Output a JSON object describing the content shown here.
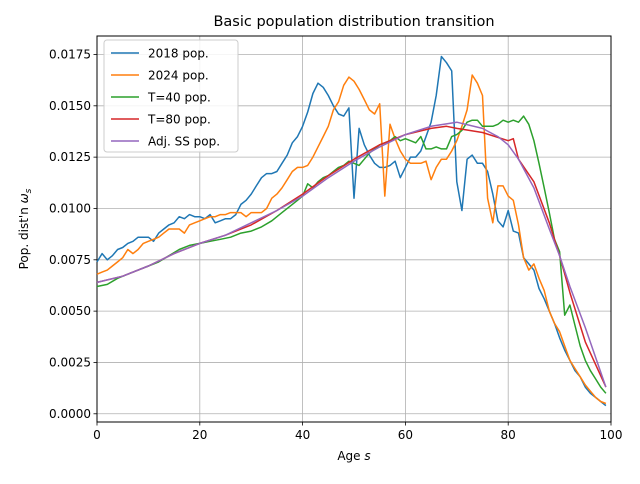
{
  "chart_data": {
    "type": "line",
    "title": "Basic population distribution transition",
    "xlabel_text": "Age ",
    "xlabel_italic": "s",
    "ylabel_text": "Pop. dist'n ",
    "ylabel_symbol": "ω",
    "ylabel_sub": "s",
    "xlim": [
      0,
      100
    ],
    "ylim": [
      -0.0004,
      0.0184
    ],
    "grid": true,
    "legend_position": "top-left",
    "x_ticks": [
      0,
      20,
      40,
      60,
      80,
      100
    ],
    "x_tick_labels": [
      "0",
      "20",
      "40",
      "60",
      "80",
      "100"
    ],
    "y_ticks": [
      0.0,
      0.0025,
      0.005,
      0.0075,
      0.01,
      0.0125,
      0.015,
      0.0175
    ],
    "y_tick_labels": [
      "0.0000",
      "0.0025",
      "0.0050",
      "0.0075",
      "0.0100",
      "0.0125",
      "0.0150",
      "0.0175"
    ],
    "series": [
      {
        "name": "2018 pop.",
        "color": "#1f77b4",
        "x": [
          0,
          1,
          2,
          3,
          4,
          5,
          6,
          7,
          8,
          9,
          10,
          11,
          12,
          13,
          14,
          15,
          16,
          17,
          18,
          19,
          20,
          21,
          22,
          23,
          24,
          25,
          26,
          27,
          28,
          29,
          30,
          31,
          32,
          33,
          34,
          35,
          36,
          37,
          38,
          39,
          40,
          41,
          42,
          43,
          44,
          45,
          46,
          47,
          48,
          49,
          50,
          51,
          52,
          53,
          54,
          55,
          56,
          57,
          58,
          59,
          60,
          61,
          62,
          63,
          64,
          65,
          66,
          67,
          68,
          69,
          70,
          71,
          72,
          73,
          74,
          75,
          76,
          77,
          78,
          79,
          80,
          81,
          82,
          83,
          84,
          85,
          86,
          87,
          88,
          89,
          90,
          91,
          92,
          93,
          94,
          95,
          96,
          97,
          98,
          99
        ],
        "y": [
          0.0074,
          0.0078,
          0.0075,
          0.0077,
          0.008,
          0.0081,
          0.0083,
          0.0084,
          0.0086,
          0.0086,
          0.0086,
          0.0084,
          0.0088,
          0.009,
          0.0092,
          0.0093,
          0.0096,
          0.0095,
          0.0097,
          0.0096,
          0.0096,
          0.0095,
          0.0097,
          0.0093,
          0.0094,
          0.0095,
          0.0095,
          0.0097,
          0.0102,
          0.0104,
          0.0107,
          0.0111,
          0.0115,
          0.0117,
          0.0117,
          0.0118,
          0.0122,
          0.0126,
          0.0132,
          0.0135,
          0.014,
          0.0147,
          0.0156,
          0.0161,
          0.0159,
          0.0155,
          0.015,
          0.0146,
          0.0145,
          0.0149,
          0.0105,
          0.0139,
          0.0131,
          0.0126,
          0.0122,
          0.012,
          0.012,
          0.0121,
          0.0123,
          0.0115,
          0.012,
          0.0125,
          0.0125,
          0.0128,
          0.0135,
          0.0142,
          0.0155,
          0.0174,
          0.0171,
          0.0167,
          0.0113,
          0.0099,
          0.0124,
          0.0126,
          0.0122,
          0.0122,
          0.0118,
          0.0107,
          0.0094,
          0.0091,
          0.0099,
          0.0089,
          0.0088,
          0.0076,
          0.0073,
          0.007,
          0.0061,
          0.0056,
          0.005,
          0.0044,
          0.0037,
          0.0031,
          0.0026,
          0.0021,
          0.0018,
          0.0013,
          0.001,
          0.0008,
          0.0006,
          0.0004
        ]
      },
      {
        "name": "2024 pop.",
        "color": "#ff7f0e",
        "x": [
          0,
          1,
          2,
          3,
          4,
          5,
          6,
          7,
          8,
          9,
          10,
          11,
          12,
          13,
          14,
          15,
          16,
          17,
          18,
          19,
          20,
          21,
          22,
          23,
          24,
          25,
          26,
          27,
          28,
          29,
          30,
          31,
          32,
          33,
          34,
          35,
          36,
          37,
          38,
          39,
          40,
          41,
          42,
          43,
          44,
          45,
          46,
          47,
          48,
          49,
          50,
          51,
          52,
          53,
          54,
          55,
          56,
          57,
          58,
          59,
          60,
          61,
          62,
          63,
          64,
          65,
          66,
          67,
          68,
          69,
          70,
          71,
          72,
          73,
          74,
          75,
          76,
          77,
          78,
          79,
          80,
          81,
          82,
          83,
          84,
          85,
          86,
          87,
          88,
          89,
          90,
          91,
          92,
          93,
          94,
          95,
          96,
          97,
          98,
          99
        ],
        "y": [
          0.0068,
          0.0069,
          0.007,
          0.0072,
          0.0074,
          0.0076,
          0.008,
          0.0078,
          0.008,
          0.0083,
          0.0084,
          0.0085,
          0.0086,
          0.0088,
          0.009,
          0.009,
          0.009,
          0.0088,
          0.0092,
          0.0093,
          0.0094,
          0.0095,
          0.0096,
          0.0096,
          0.0097,
          0.0097,
          0.0098,
          0.0098,
          0.0098,
          0.0096,
          0.0098,
          0.0098,
          0.0098,
          0.01,
          0.0105,
          0.0107,
          0.011,
          0.0114,
          0.0118,
          0.012,
          0.012,
          0.0121,
          0.0125,
          0.013,
          0.0135,
          0.014,
          0.0148,
          0.0152,
          0.016,
          0.0164,
          0.0162,
          0.0158,
          0.0153,
          0.0148,
          0.0146,
          0.0151,
          0.0106,
          0.0141,
          0.0134,
          0.0128,
          0.0124,
          0.0122,
          0.0122,
          0.0122,
          0.0123,
          0.0114,
          0.012,
          0.0124,
          0.0124,
          0.0128,
          0.0133,
          0.014,
          0.0148,
          0.0165,
          0.0161,
          0.0155,
          0.0105,
          0.0093,
          0.0111,
          0.0111,
          0.0106,
          0.0104,
          0.0092,
          0.0076,
          0.007,
          0.0073,
          0.0066,
          0.006,
          0.005,
          0.0044,
          0.004,
          0.0033,
          0.0026,
          0.0022,
          0.0018,
          0.0014,
          0.0011,
          0.0008,
          0.0006,
          0.0005
        ]
      },
      {
        "name": "T=40 pop.",
        "color": "#2ca02c",
        "x": [
          0,
          2,
          4,
          6,
          8,
          10,
          12,
          14,
          16,
          18,
          20,
          22,
          24,
          26,
          28,
          30,
          32,
          34,
          36,
          38,
          39,
          40,
          41,
          42,
          43,
          44,
          45,
          46,
          47,
          48,
          49,
          50,
          51,
          52,
          53,
          54,
          55,
          56,
          57,
          58,
          59,
          60,
          61,
          62,
          63,
          64,
          65,
          66,
          67,
          68,
          69,
          70,
          71,
          72,
          73,
          74,
          75,
          76,
          77,
          78,
          79,
          80,
          81,
          82,
          83,
          84,
          85,
          86,
          87,
          88,
          89,
          90,
          91,
          92,
          93,
          94,
          95,
          96,
          97,
          98,
          99
        ],
        "y": [
          0.0062,
          0.0063,
          0.0066,
          0.0068,
          0.007,
          0.0072,
          0.0074,
          0.0077,
          0.008,
          0.0082,
          0.0083,
          0.0084,
          0.0085,
          0.0086,
          0.0088,
          0.0089,
          0.0091,
          0.0094,
          0.0098,
          0.0102,
          0.0104,
          0.0106,
          0.0112,
          0.011,
          0.0113,
          0.0115,
          0.0116,
          0.0118,
          0.012,
          0.0121,
          0.0123,
          0.0122,
          0.0121,
          0.0124,
          0.0127,
          0.0129,
          0.0131,
          0.0132,
          0.0133,
          0.0135,
          0.0133,
          0.0134,
          0.0133,
          0.0132,
          0.0135,
          0.0129,
          0.0129,
          0.013,
          0.0129,
          0.0129,
          0.0135,
          0.0136,
          0.0138,
          0.0142,
          0.0143,
          0.0143,
          0.014,
          0.014,
          0.014,
          0.0141,
          0.0143,
          0.0142,
          0.0143,
          0.0142,
          0.0145,
          0.0141,
          0.0133,
          0.0122,
          0.011,
          0.0098,
          0.0085,
          0.0079,
          0.0048,
          0.0053,
          0.0043,
          0.0033,
          0.0026,
          0.0021,
          0.0017,
          0.0013,
          0.001
        ]
      },
      {
        "name": "T=80 pop.",
        "color": "#d62728",
        "x": [
          0,
          5,
          10,
          15,
          20,
          25,
          30,
          35,
          40,
          45,
          50,
          55,
          60,
          65,
          68,
          70,
          75,
          80,
          81,
          82,
          85,
          88,
          90,
          92,
          95,
          99
        ],
        "y": [
          0.0064,
          0.0067,
          0.0072,
          0.0078,
          0.0083,
          0.0087,
          0.0092,
          0.0099,
          0.0107,
          0.0116,
          0.0124,
          0.0131,
          0.0136,
          0.0139,
          0.014,
          0.0139,
          0.0137,
          0.0133,
          0.0134,
          0.0124,
          0.0113,
          0.0093,
          0.0077,
          0.0059,
          0.0035,
          0.0013
        ]
      },
      {
        "name": "Adj. SS pop.",
        "color": "#9467bd",
        "x": [
          0,
          5,
          10,
          15,
          20,
          25,
          30,
          35,
          40,
          45,
          50,
          55,
          60,
          65,
          70,
          75,
          78,
          80,
          82,
          85,
          88,
          90,
          92,
          95,
          99
        ],
        "y": [
          0.0064,
          0.0067,
          0.0072,
          0.0078,
          0.0083,
          0.0087,
          0.0093,
          0.0099,
          0.0106,
          0.0115,
          0.0123,
          0.013,
          0.0136,
          0.014,
          0.0142,
          0.0139,
          0.0135,
          0.0131,
          0.0124,
          0.011,
          0.009,
          0.0077,
          0.0062,
          0.0042,
          0.0013
        ]
      }
    ]
  }
}
